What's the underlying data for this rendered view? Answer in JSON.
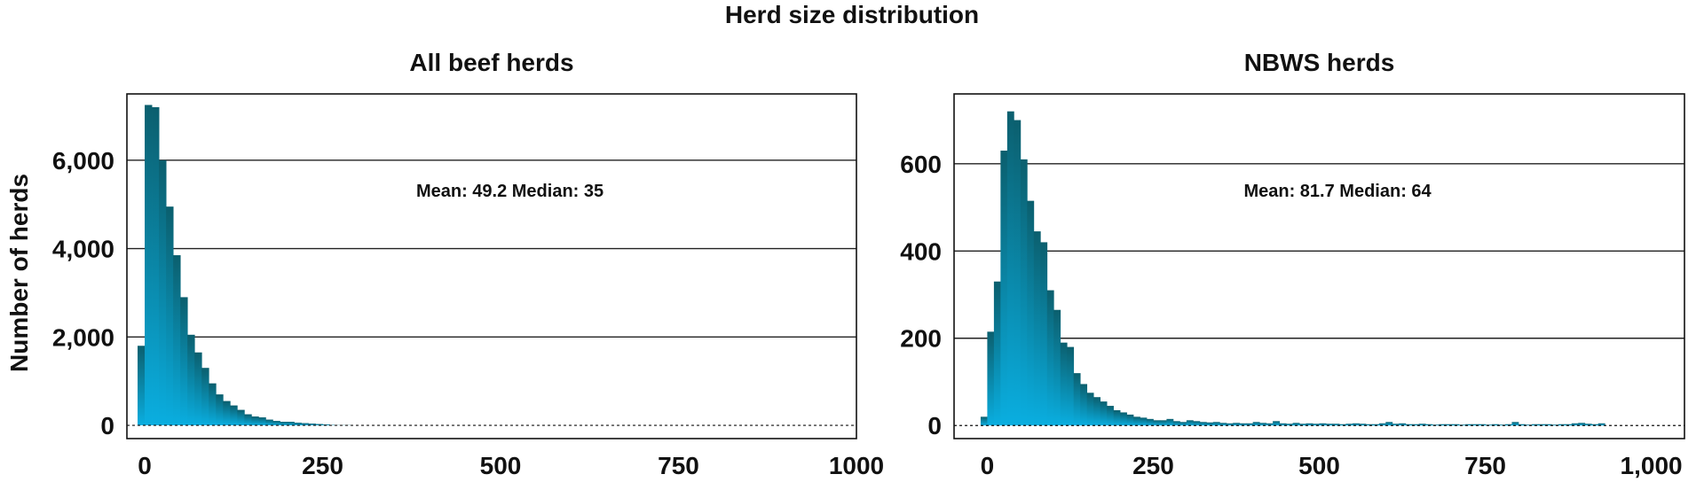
{
  "title": "Herd size distribution",
  "shared_ylabel": "Number of herds",
  "colors": {
    "bar_top": "#0b5f6e",
    "bar_bottom": "#0aaee0",
    "gridline": "#222222",
    "frame": "#111111"
  },
  "chart_data": [
    {
      "type": "bar",
      "title": "All beef herds",
      "ylabel": "Number of herds",
      "xlabel": "",
      "annotation": "Mean: 49.2  Median: 35",
      "xlim": [
        -25,
        1000
      ],
      "ylim": [
        -300,
        7500
      ],
      "xticks": [
        0,
        250,
        500,
        750,
        1000
      ],
      "xtick_labels": [
        "0",
        "250",
        "500",
        "750",
        "1000"
      ],
      "yticks": [
        0,
        2000,
        4000,
        6000
      ],
      "ytick_labels": [
        "0",
        "2,000",
        "4,000",
        "6,000"
      ],
      "grid": "y",
      "bin_start": -10,
      "bin_width": 10,
      "values": [
        1800,
        7250,
        7200,
        6000,
        4950,
        3850,
        2900,
        2050,
        1650,
        1300,
        950,
        700,
        550,
        450,
        350,
        250,
        200,
        180,
        130,
        100,
        80,
        80,
        60,
        50,
        40,
        30,
        20,
        10,
        5,
        5
      ]
    },
    {
      "type": "bar",
      "title": "NBWS herds",
      "ylabel": "",
      "xlabel": "",
      "annotation": "Mean: 81.7  Median: 64",
      "xlim": [
        -50,
        1050
      ],
      "ylim": [
        -30,
        760
      ],
      "xticks": [
        0,
        250,
        500,
        750,
        1000
      ],
      "xtick_labels": [
        "0",
        "250",
        "500",
        "750",
        "1,000"
      ],
      "yticks": [
        0,
        200,
        400,
        600
      ],
      "ytick_labels": [
        "0",
        "200",
        "400",
        "600"
      ],
      "grid": "y",
      "bin_start": -10,
      "bin_width": 10,
      "values": [
        20,
        215,
        330,
        630,
        720,
        700,
        610,
        515,
        445,
        420,
        310,
        265,
        190,
        180,
        120,
        95,
        75,
        65,
        55,
        45,
        35,
        30,
        25,
        20,
        18,
        15,
        12,
        12,
        15,
        10,
        8,
        12,
        10,
        8,
        7,
        8,
        6,
        5,
        6,
        5,
        5,
        8,
        6,
        5,
        10,
        5,
        4,
        6,
        4,
        5,
        4,
        5,
        4,
        4,
        3,
        4,
        5,
        4,
        3,
        3,
        5,
        8,
        4,
        5,
        3,
        3,
        4,
        3,
        2,
        3,
        3,
        3,
        2,
        3,
        3,
        3,
        2,
        3,
        2,
        3,
        8,
        3,
        2,
        3,
        3,
        3,
        2,
        3,
        3,
        5,
        6,
        4,
        3,
        5
      ]
    }
  ]
}
